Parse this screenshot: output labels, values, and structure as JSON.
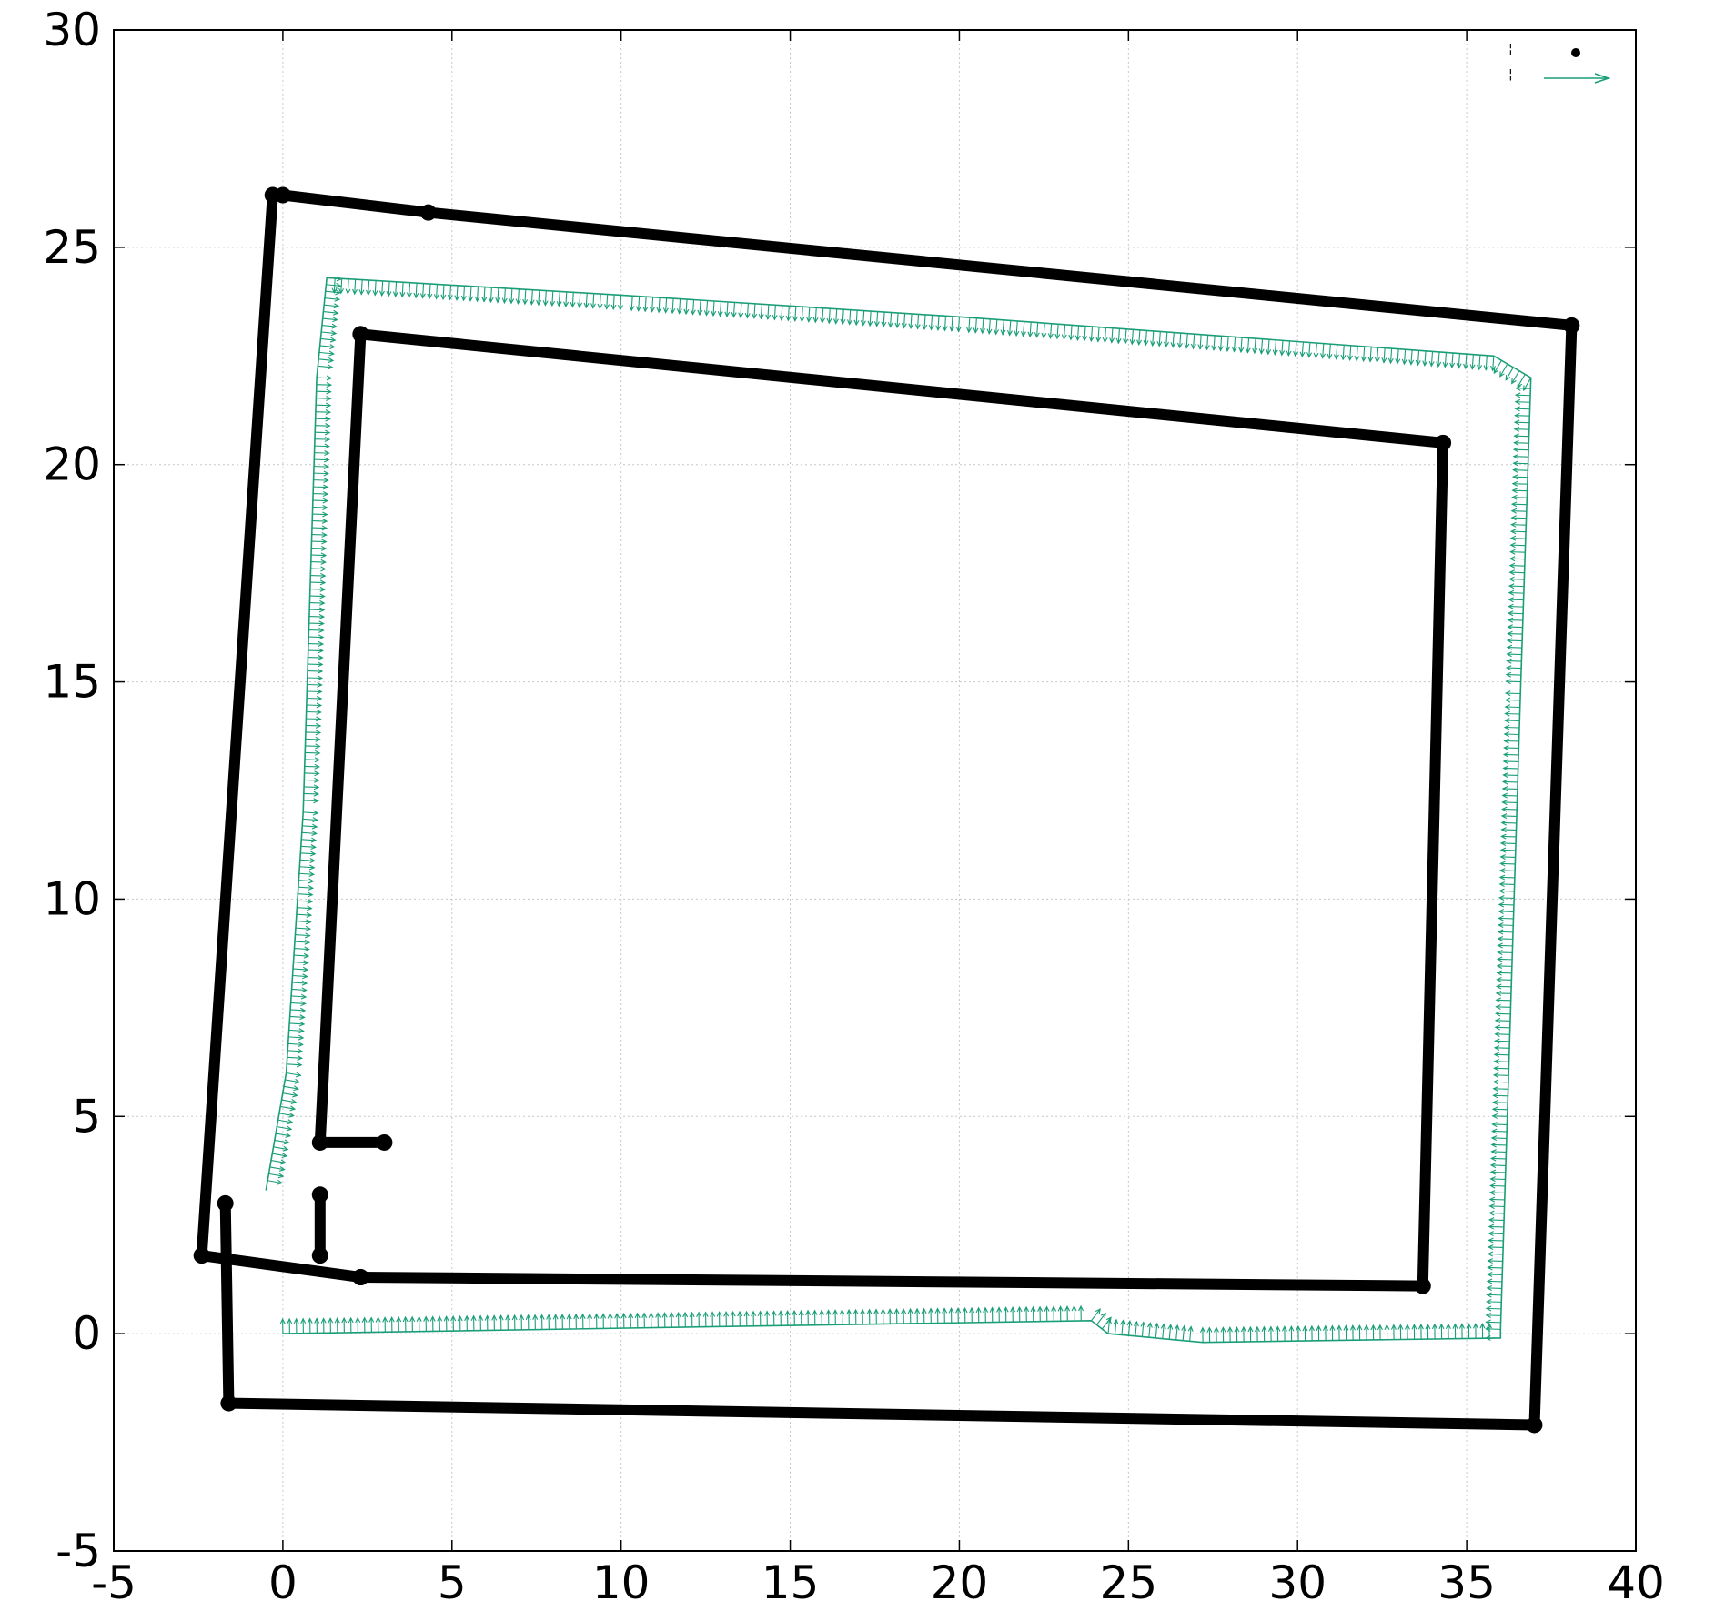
{
  "chart_data": {
    "type": "scatter",
    "title": "",
    "xlabel": "",
    "ylabel": "",
    "xlim": [
      -5,
      40
    ],
    "ylim": [
      -5,
      30
    ],
    "x_ticks": [
      "-5",
      "0",
      "5",
      "10",
      "15",
      "20",
      "25",
      "30",
      "35",
      "40"
    ],
    "y_ticks": [
      "-5",
      "0",
      "5",
      "10",
      "15",
      "20",
      "25",
      "30"
    ],
    "grid": true,
    "legend_position": "top-right",
    "series": [
      {
        "style": "points",
        "color": "#000000",
        "walls": [
          [
            [
              0.0,
              26.2
            ],
            [
              4.3,
              25.8
            ],
            [
              38.1,
              23.2
            ],
            [
              37.0,
              -2.1
            ],
            [
              -1.6,
              -1.6
            ],
            [
              -1.7,
              3.0
            ]
          ],
          [
            [
              -0.3,
              26.2
            ],
            [
              -2.4,
              1.8
            ],
            [
              2.3,
              1.3
            ]
          ],
          [
            [
              2.3,
              23.0
            ],
            [
              34.3,
              20.5
            ],
            [
              33.7,
              1.1
            ],
            [
              2.3,
              1.3
            ]
          ],
          [
            [
              2.3,
              23.0
            ],
            [
              1.1,
              4.4
            ],
            [
              3.0,
              4.4
            ]
          ],
          [
            [
              1.1,
              3.2
            ],
            [
              1.1,
              1.8
            ]
          ]
        ]
      },
      {
        "style": "vectors",
        "color": "#1a9e77",
        "path": [
          [
            0.0,
            0.0
          ],
          [
            23.9,
            0.3
          ],
          [
            24.4,
            0.0
          ],
          [
            27.2,
            -0.2
          ],
          [
            36.0,
            -0.1
          ],
          [
            36.0,
            0.1
          ],
          [
            36.2,
            5.0
          ],
          [
            36.6,
            15.0
          ],
          [
            36.9,
            22.0
          ],
          [
            35.8,
            22.5
          ],
          [
            20.0,
            23.4
          ],
          [
            10.0,
            23.9
          ],
          [
            1.3,
            24.3
          ],
          [
            1.0,
            22.0
          ],
          [
            0.6,
            12.0
          ],
          [
            0.1,
            6.0
          ],
          [
            -0.5,
            3.3
          ]
        ]
      }
    ]
  }
}
